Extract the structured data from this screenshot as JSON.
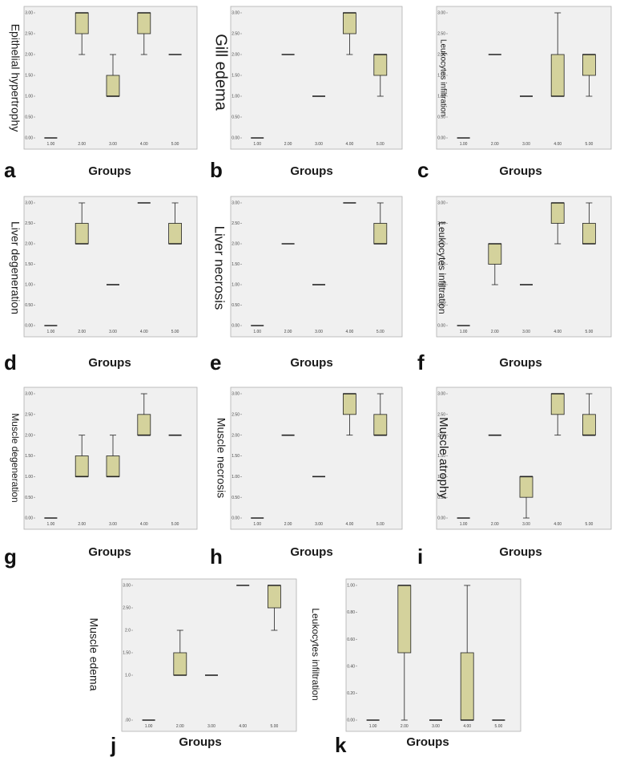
{
  "figure": {
    "style": {
      "plot_bg": "#f0f0f0",
      "box_fill": "#d4d29c",
      "line": "#222222",
      "frame": "#b0b0b0"
    }
  },
  "chart_data": [
    {
      "id": "a",
      "letter": "a",
      "type": "box",
      "title": "",
      "xlabel": "Groups",
      "ylabel": "Epithelial hypertrophy",
      "categories": [
        "1.00",
        "2.00",
        "3.00",
        "4.00",
        "5.00"
      ],
      "yticks": [
        "0.00",
        "0.50",
        "1.00",
        "1.50",
        "2.00",
        "2.50",
        "3.00"
      ],
      "ylim": [
        0,
        3
      ],
      "boxes": [
        {
          "min": 0,
          "q1": 0,
          "median": 0,
          "q3": 0,
          "max": 0
        },
        {
          "min": 2,
          "q1": 2.5,
          "median": 3,
          "q3": 3,
          "max": 3
        },
        {
          "min": 1,
          "q1": 1,
          "median": 1,
          "q3": 1.5,
          "max": 2
        },
        {
          "min": 2,
          "q1": 2.5,
          "median": 3,
          "q3": 3,
          "max": 3
        },
        {
          "min": 2,
          "q1": 2,
          "median": 2,
          "q3": 2,
          "max": 2
        }
      ]
    },
    {
      "id": "b",
      "letter": "b",
      "type": "box",
      "title": "",
      "xlabel": "Groups",
      "ylabel": "Gill edema",
      "categories": [
        "1.00",
        "2.00",
        "3.00",
        "4.00",
        "5.00"
      ],
      "yticks": [
        "0.00",
        "0.50",
        "1.00",
        "1.50",
        "2.00",
        "2.50",
        "3.00"
      ],
      "ylim": [
        0,
        3
      ],
      "boxes": [
        {
          "min": 0,
          "q1": 0,
          "median": 0,
          "q3": 0,
          "max": 0
        },
        {
          "min": 2,
          "q1": 2,
          "median": 2,
          "q3": 2,
          "max": 2
        },
        {
          "min": 1,
          "q1": 1,
          "median": 1,
          "q3": 1,
          "max": 1
        },
        {
          "min": 2,
          "q1": 2.5,
          "median": 3,
          "q3": 3,
          "max": 3
        },
        {
          "min": 1,
          "q1": 1.5,
          "median": 2,
          "q3": 2,
          "max": 2
        }
      ]
    },
    {
      "id": "c",
      "letter": "c",
      "type": "box",
      "title": "",
      "xlabel": "Groups",
      "ylabel": "Leukocytes infiltration",
      "categories": [
        "1.00",
        "2.00",
        "3.00",
        "4.00",
        "5.00"
      ],
      "yticks": [
        "0.00",
        "0.50",
        "1.00",
        "1.50",
        "2.00",
        "2.50",
        "3.00"
      ],
      "ylim": [
        0,
        3
      ],
      "boxes": [
        {
          "min": 0,
          "q1": 0,
          "median": 0,
          "q3": 0,
          "max": 0
        },
        {
          "min": 2,
          "q1": 2,
          "median": 2,
          "q3": 2,
          "max": 2
        },
        {
          "min": 1,
          "q1": 1,
          "median": 1,
          "q3": 1,
          "max": 1
        },
        {
          "min": 1,
          "q1": 1,
          "median": 1,
          "q3": 2,
          "max": 3
        },
        {
          "min": 1,
          "q1": 1.5,
          "median": 2,
          "q3": 2,
          "max": 2
        }
      ]
    },
    {
      "id": "d",
      "letter": "d",
      "type": "box",
      "title": "",
      "xlabel": "Groups",
      "ylabel": "Liver degeneration",
      "categories": [
        "1.00",
        "2.00",
        "3.00",
        "4.00",
        "5.00"
      ],
      "yticks": [
        "0.00",
        "0.50",
        "1.00",
        "1.50",
        "2.00",
        "2.50",
        "3.00"
      ],
      "ylim": [
        0,
        3
      ],
      "boxes": [
        {
          "min": 0,
          "q1": 0,
          "median": 0,
          "q3": 0,
          "max": 0
        },
        {
          "min": 2,
          "q1": 2,
          "median": 2,
          "q3": 2.5,
          "max": 3
        },
        {
          "min": 1,
          "q1": 1,
          "median": 1,
          "q3": 1,
          "max": 1
        },
        {
          "min": 3,
          "q1": 3,
          "median": 3,
          "q3": 3,
          "max": 3
        },
        {
          "min": 2,
          "q1": 2,
          "median": 2,
          "q3": 2.5,
          "max": 3
        }
      ]
    },
    {
      "id": "e",
      "letter": "e",
      "type": "box",
      "title": "",
      "xlabel": "Groups",
      "ylabel": "Liver necrosis",
      "categories": [
        "1.00",
        "2.00",
        "3.00",
        "4.00",
        "5.00"
      ],
      "yticks": [
        "0.00",
        "0.50",
        "1.00",
        "1.50",
        "2.00",
        "2.50",
        "3.00"
      ],
      "ylim": [
        0,
        3
      ],
      "boxes": [
        {
          "min": 0,
          "q1": 0,
          "median": 0,
          "q3": 0,
          "max": 0
        },
        {
          "min": 2,
          "q1": 2,
          "median": 2,
          "q3": 2,
          "max": 2
        },
        {
          "min": 1,
          "q1": 1,
          "median": 1,
          "q3": 1,
          "max": 1
        },
        {
          "min": 3,
          "q1": 3,
          "median": 3,
          "q3": 3,
          "max": 3
        },
        {
          "min": 2,
          "q1": 2,
          "median": 2,
          "q3": 2.5,
          "max": 3
        }
      ]
    },
    {
      "id": "f",
      "letter": "f",
      "type": "box",
      "title": "",
      "xlabel": "Groups",
      "ylabel": "Leukocytes infiltration",
      "categories": [
        "1.00",
        "2.00",
        "3.00",
        "4.00",
        "5.00"
      ],
      "yticks": [
        "0.00",
        "0.50",
        "1.00",
        "1.50",
        "2.00",
        "2.50",
        "3.00"
      ],
      "ylim": [
        0,
        3
      ],
      "boxes": [
        {
          "min": 0,
          "q1": 0,
          "median": 0,
          "q3": 0,
          "max": 0
        },
        {
          "min": 1,
          "q1": 1.5,
          "median": 2,
          "q3": 2,
          "max": 2
        },
        {
          "min": 1,
          "q1": 1,
          "median": 1,
          "q3": 1,
          "max": 1
        },
        {
          "min": 2,
          "q1": 2.5,
          "median": 3,
          "q3": 3,
          "max": 3
        },
        {
          "min": 2,
          "q1": 2,
          "median": 2,
          "q3": 2.5,
          "max": 3
        }
      ]
    },
    {
      "id": "g",
      "letter": "g",
      "type": "box",
      "title": "",
      "xlabel": "Groups",
      "ylabel": "Muscle degeneration",
      "categories": [
        "1.00",
        "2.00",
        "3.00",
        "4.00",
        "5.00"
      ],
      "yticks": [
        "0.00",
        "0.50",
        "1.00",
        "1.50",
        "2.00",
        "2.50",
        "3.00"
      ],
      "ylim": [
        0,
        3
      ],
      "boxes": [
        {
          "min": 0,
          "q1": 0,
          "median": 0,
          "q3": 0,
          "max": 0
        },
        {
          "min": 1,
          "q1": 1,
          "median": 1,
          "q3": 1.5,
          "max": 2
        },
        {
          "min": 1,
          "q1": 1,
          "median": 1,
          "q3": 1.5,
          "max": 2
        },
        {
          "min": 2,
          "q1": 2,
          "median": 2,
          "q3": 2.5,
          "max": 3
        },
        {
          "min": 2,
          "q1": 2,
          "median": 2,
          "q3": 2,
          "max": 2
        }
      ]
    },
    {
      "id": "h",
      "letter": "h",
      "type": "box",
      "title": "",
      "xlabel": "Groups",
      "ylabel": "Muscle necrosis",
      "categories": [
        "1.00",
        "2.00",
        "3.00",
        "4.00",
        "5.00"
      ],
      "yticks": [
        "0.00",
        "0.50",
        "1.00",
        "1.50",
        "2.00",
        "2.50",
        "3.00"
      ],
      "ylim": [
        0,
        3
      ],
      "boxes": [
        {
          "min": 0,
          "q1": 0,
          "median": 0,
          "q3": 0,
          "max": 0
        },
        {
          "min": 2,
          "q1": 2,
          "median": 2,
          "q3": 2,
          "max": 2
        },
        {
          "min": 1,
          "q1": 1,
          "median": 1,
          "q3": 1,
          "max": 1
        },
        {
          "min": 2,
          "q1": 2.5,
          "median": 3,
          "q3": 3,
          "max": 3
        },
        {
          "min": 2,
          "q1": 2,
          "median": 2,
          "q3": 2.5,
          "max": 3
        }
      ]
    },
    {
      "id": "i",
      "letter": "i",
      "type": "box",
      "title": "",
      "xlabel": "Groups",
      "ylabel": "Muscle atrophy",
      "categories": [
        "1.00",
        "2.00",
        "3.00",
        "4.00",
        "5.00"
      ],
      "yticks": [
        "0.00",
        "0.50",
        "1.00",
        "1.50",
        "2.00",
        "2.50",
        "3.00"
      ],
      "ylim": [
        0,
        3
      ],
      "boxes": [
        {
          "min": 0,
          "q1": 0,
          "median": 0,
          "q3": 0,
          "max": 0
        },
        {
          "min": 2,
          "q1": 2,
          "median": 2,
          "q3": 2,
          "max": 2
        },
        {
          "min": 0,
          "q1": 0.5,
          "median": 1,
          "q3": 1,
          "max": 1
        },
        {
          "min": 2,
          "q1": 2.5,
          "median": 3,
          "q3": 3,
          "max": 3
        },
        {
          "min": 2,
          "q1": 2,
          "median": 2,
          "q3": 2.5,
          "max": 3
        }
      ]
    },
    {
      "id": "j",
      "letter": "j",
      "type": "box",
      "title": "",
      "xlabel": "Groups",
      "ylabel": "Muscle edema",
      "categories": [
        "1.00",
        "2.00",
        "3.00",
        "4.00",
        "5.00"
      ],
      "yticks": [
        ".00",
        "1.0",
        "1.50",
        "2.0",
        "2.50",
        "3.00"
      ],
      "ytick_values": [
        0,
        1,
        1.5,
        2,
        2.5,
        3
      ],
      "ylim": [
        0,
        3
      ],
      "boxes": [
        {
          "min": 0,
          "q1": 0,
          "median": 0,
          "q3": 0,
          "max": 0
        },
        {
          "min": 1,
          "q1": 1,
          "median": 1,
          "q3": 1.5,
          "max": 2
        },
        {
          "min": 1,
          "q1": 1,
          "median": 1,
          "q3": 1,
          "max": 1
        },
        {
          "min": 3,
          "q1": 3,
          "median": 3,
          "q3": 3,
          "max": 3
        },
        {
          "min": 2,
          "q1": 2.5,
          "median": 3,
          "q3": 3,
          "max": 3
        }
      ]
    },
    {
      "id": "k",
      "letter": "k",
      "type": "box",
      "title": "",
      "xlabel": "Groups",
      "ylabel": "Leukocytes infiltration",
      "categories": [
        "1.00",
        "2.00",
        "3.00",
        "4.00",
        "5.00"
      ],
      "yticks": [
        "0.00",
        "0.20",
        "0.40",
        "0.60",
        "0.80",
        "1.00"
      ],
      "ylim": [
        0,
        1
      ],
      "boxes": [
        {
          "min": 0,
          "q1": 0,
          "median": 0,
          "q3": 0,
          "max": 0
        },
        {
          "min": 0,
          "q1": 0.5,
          "median": 1,
          "q3": 1,
          "max": 1
        },
        {
          "min": 0,
          "q1": 0,
          "median": 0,
          "q3": 0,
          "max": 0
        },
        {
          "min": 0,
          "q1": 0,
          "median": 0,
          "q3": 0.5,
          "max": 1
        },
        {
          "min": 0,
          "q1": 0,
          "median": 0,
          "q3": 0,
          "max": 0
        }
      ]
    }
  ]
}
